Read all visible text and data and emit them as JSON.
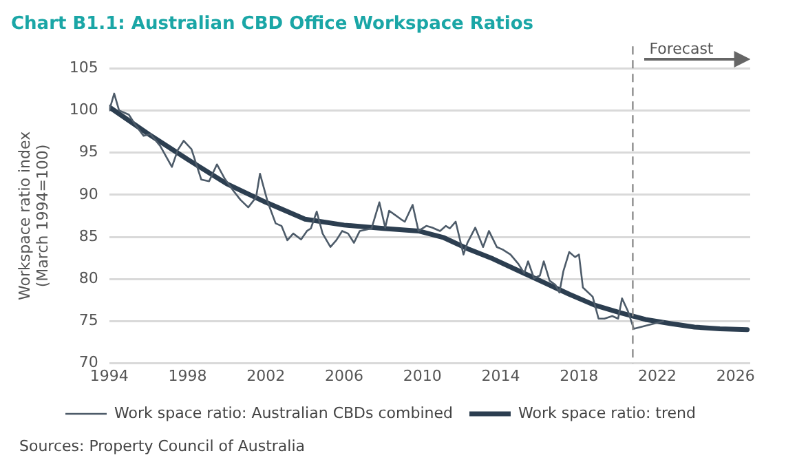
{
  "chart_data": {
    "type": "line",
    "title": "Chart B1.1: Australian CBD Office Workspace Ratios",
    "ylabel": "Workspace ratio index (March 1994=100)",
    "xlim": [
      1994,
      2026.75
    ],
    "xticks": [
      1994,
      1998,
      2002,
      2006,
      2010,
      2014,
      2018,
      2022,
      2026
    ],
    "ylim": [
      70,
      105
    ],
    "yticks": [
      70,
      75,
      80,
      85,
      90,
      95,
      100,
      105
    ],
    "grid": "y",
    "legend": "bottom",
    "marker": "none",
    "line_style": "solid",
    "series": [
      {
        "name": "Work space ratio: Australian CBDs combined",
        "color": "#4d5b69",
        "x": [
          1994,
          1994.25,
          1994.5,
          1995,
          1995.3,
          1995.75,
          1996.1,
          1996.6,
          1997.2,
          1997.5,
          1997.8,
          1998.2,
          1998.7,
          1999.1,
          1999.5,
          1999.9,
          2000.3,
          2000.7,
          2001.1,
          2001.5,
          2001.7,
          2002.1,
          2002.5,
          2002.8,
          2003.1,
          2003.4,
          2003.8,
          2004.1,
          2004.3,
          2004.6,
          2004.9,
          2005.3,
          2005.6,
          2005.9,
          2006.2,
          2006.5,
          2006.8,
          2007.4,
          2007.8,
          2008.1,
          2008.3,
          2008.6,
          2008.9,
          2009.1,
          2009.5,
          2009.8,
          2010.2,
          2010.5,
          2010.9,
          2011.2,
          2011.4,
          2011.7,
          2012.1,
          2012.3,
          2012.7,
          2013.1,
          2013.4,
          2013.8,
          2014.1,
          2014.5,
          2014.9,
          2015.2,
          2015.4,
          2015.7,
          2016,
          2016.2,
          2016.5,
          2016.8,
          2017,
          2017.2,
          2017.5,
          2017.8,
          2018,
          2018.2,
          2018.7,
          2019,
          2019.3,
          2019.7,
          2020,
          2020.2,
          2020.5,
          2020.8,
          2022.3
        ],
        "values": [
          100,
          102,
          100,
          99.5,
          98.4,
          97,
          97.2,
          95.8,
          93.3,
          95.3,
          96.4,
          95.4,
          91.8,
          91.6,
          93.6,
          91.9,
          90.6,
          89.4,
          88.5,
          89.7,
          92.5,
          89.1,
          86.6,
          86.3,
          84.6,
          85.4,
          84.7,
          85.7,
          86,
          88,
          85.4,
          83.8,
          84.6,
          85.7,
          85.4,
          84.3,
          85.7,
          86,
          89.1,
          86.1,
          88.1,
          87.6,
          87.1,
          86.8,
          88.8,
          85.7,
          86.3,
          86.1,
          85.7,
          86.3,
          86,
          86.8,
          82.9,
          84.3,
          86.1,
          83.8,
          85.7,
          83.8,
          83.5,
          82.9,
          81.8,
          80.7,
          82.1,
          80.1,
          80.4,
          82.1,
          79.8,
          79.3,
          78.4,
          80.9,
          83.2,
          82.6,
          82.9,
          79,
          77.9,
          75.3,
          75.3,
          75.6,
          75.3,
          77.7,
          76.2,
          74.1,
          75
        ]
      },
      {
        "name": "Work space ratio: trend",
        "color": "#2c3e50",
        "x": [
          1994,
          1996,
          1998,
          2000,
          2002,
          2004,
          2006,
          2008,
          2009.8,
          2011.1,
          2012.4,
          2013.6,
          2014.9,
          2016.2,
          2017.5,
          2018.8,
          2020.1,
          2021.4,
          2022.7,
          2023.9,
          2025.2,
          2026.6
        ],
        "values": [
          100.4,
          97.2,
          94.2,
          91.3,
          89.1,
          87.1,
          86.4,
          86,
          85.7,
          84.9,
          83.5,
          82.4,
          81,
          79.6,
          78.2,
          76.9,
          76,
          75.2,
          74.7,
          74.3,
          74.1,
          74
        ]
      }
    ],
    "ref_lines": [
      {
        "axis": "x",
        "value": 2020.75,
        "label": "Forecast",
        "color": "#8c8c8c",
        "line_style": "dashed"
      }
    ],
    "annotations": [
      "Sources: Property Council of Australia"
    ]
  }
}
